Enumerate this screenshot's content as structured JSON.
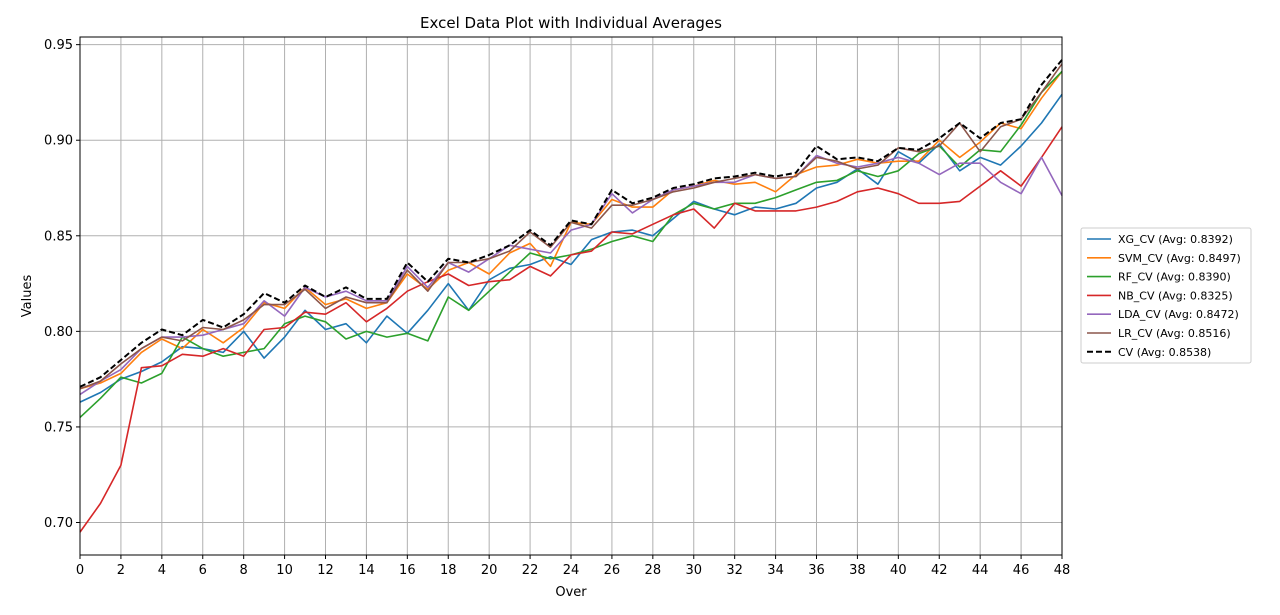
{
  "chart_data": {
    "type": "line",
    "title": "Excel Data Plot with Individual Averages",
    "xlabel": "Over",
    "ylabel": "Values",
    "xlim": [
      0,
      48
    ],
    "ylim": [
      0.683,
      0.954
    ],
    "xticks": [
      0,
      2,
      4,
      6,
      8,
      10,
      12,
      14,
      16,
      18,
      20,
      22,
      24,
      26,
      28,
      30,
      32,
      34,
      36,
      38,
      40,
      42,
      44,
      46,
      48
    ],
    "yticks": [
      0.7,
      0.75,
      0.8,
      0.85,
      0.9,
      0.95
    ],
    "grid": true,
    "legend_position": "center-right",
    "x": [
      0,
      1,
      2,
      3,
      4,
      5,
      6,
      7,
      8,
      9,
      10,
      11,
      12,
      13,
      14,
      15,
      16,
      17,
      18,
      19,
      20,
      21,
      22,
      23,
      24,
      25,
      26,
      27,
      28,
      29,
      30,
      31,
      32,
      33,
      34,
      35,
      36,
      37,
      38,
      39,
      40,
      41,
      42,
      43,
      44,
      45,
      46,
      47,
      48
    ],
    "series": [
      {
        "name": "XG_CV (Avg: 0.8392)",
        "color": "#1f77b4",
        "dashed": false,
        "values": [
          0.763,
          0.768,
          0.775,
          0.779,
          0.784,
          0.792,
          0.791,
          0.789,
          0.8,
          0.786,
          0.797,
          0.811,
          0.801,
          0.804,
          0.794,
          0.808,
          0.799,
          0.811,
          0.825,
          0.811,
          0.827,
          0.833,
          0.835,
          0.839,
          0.835,
          0.848,
          0.852,
          0.853,
          0.85,
          0.859,
          0.868,
          0.864,
          0.861,
          0.865,
          0.864,
          0.867,
          0.875,
          0.878,
          0.885,
          0.877,
          0.894,
          0.888,
          0.898,
          0.884,
          0.891,
          0.887,
          0.897,
          0.909,
          0.924
        ]
      },
      {
        "name": "SVM_CV (Avg: 0.8497)",
        "color": "#ff7f0e",
        "dashed": false,
        "values": [
          0.77,
          0.773,
          0.778,
          0.789,
          0.796,
          0.791,
          0.801,
          0.794,
          0.802,
          0.815,
          0.812,
          0.823,
          0.814,
          0.817,
          0.812,
          0.815,
          0.83,
          0.822,
          0.832,
          0.836,
          0.83,
          0.841,
          0.846,
          0.834,
          0.857,
          0.856,
          0.869,
          0.865,
          0.865,
          0.874,
          0.876,
          0.879,
          0.877,
          0.878,
          0.873,
          0.882,
          0.886,
          0.887,
          0.89,
          0.888,
          0.889,
          0.889,
          0.9,
          0.891,
          0.899,
          0.909,
          0.906,
          0.922,
          0.936
        ]
      },
      {
        "name": "RF_CV (Avg: 0.8390)",
        "color": "#2ca02c",
        "dashed": false,
        "values": [
          0.755,
          0.765,
          0.776,
          0.773,
          0.778,
          0.797,
          0.791,
          0.787,
          0.789,
          0.791,
          0.804,
          0.808,
          0.805,
          0.796,
          0.8,
          0.797,
          0.799,
          0.795,
          0.818,
          0.811,
          0.821,
          0.831,
          0.841,
          0.838,
          0.84,
          0.843,
          0.847,
          0.85,
          0.847,
          0.861,
          0.867,
          0.864,
          0.867,
          0.867,
          0.87,
          0.874,
          0.878,
          0.879,
          0.884,
          0.881,
          0.884,
          0.893,
          0.897,
          0.886,
          0.895,
          0.894,
          0.908,
          0.925,
          0.936
        ]
      },
      {
        "name": "NB_CV (Avg: 0.8325)",
        "color": "#d62728",
        "dashed": false,
        "values": [
          0.695,
          0.71,
          0.73,
          0.781,
          0.782,
          0.788,
          0.787,
          0.791,
          0.787,
          0.801,
          0.802,
          0.81,
          0.809,
          0.815,
          0.805,
          0.812,
          0.821,
          0.826,
          0.83,
          0.824,
          0.826,
          0.827,
          0.834,
          0.829,
          0.84,
          0.842,
          0.852,
          0.851,
          0.856,
          0.861,
          0.864,
          0.854,
          0.867,
          0.863,
          0.863,
          0.863,
          0.865,
          0.868,
          0.873,
          0.875,
          0.872,
          0.867,
          0.867,
          0.868,
          0.876,
          0.884,
          0.876,
          0.891,
          0.907
        ]
      },
      {
        "name": "LDA_CV (Avg: 0.8472)",
        "color": "#9467bd",
        "dashed": false,
        "values": [
          0.767,
          0.774,
          0.78,
          0.791,
          0.797,
          0.797,
          0.798,
          0.801,
          0.804,
          0.816,
          0.808,
          0.823,
          0.818,
          0.821,
          0.816,
          0.816,
          0.834,
          0.823,
          0.836,
          0.831,
          0.838,
          0.845,
          0.843,
          0.841,
          0.853,
          0.856,
          0.872,
          0.862,
          0.869,
          0.874,
          0.876,
          0.878,
          0.878,
          0.882,
          0.88,
          0.881,
          0.892,
          0.888,
          0.886,
          0.888,
          0.891,
          0.888,
          0.882,
          0.888,
          0.888,
          0.878,
          0.872,
          0.891,
          0.871
        ]
      },
      {
        "name": "LR_CV (Avg: 0.8516)",
        "color": "#8c564b",
        "dashed": false,
        "values": [
          0.77,
          0.774,
          0.783,
          0.791,
          0.797,
          0.795,
          0.802,
          0.801,
          0.806,
          0.814,
          0.814,
          0.822,
          0.812,
          0.818,
          0.815,
          0.815,
          0.832,
          0.821,
          0.836,
          0.836,
          0.838,
          0.842,
          0.852,
          0.844,
          0.857,
          0.854,
          0.866,
          0.866,
          0.869,
          0.873,
          0.875,
          0.878,
          0.88,
          0.882,
          0.88,
          0.881,
          0.891,
          0.889,
          0.885,
          0.887,
          0.896,
          0.894,
          0.897,
          0.909,
          0.894,
          0.907,
          0.911,
          0.925,
          0.94
        ]
      },
      {
        "name": "CV (Avg: 0.8538)",
        "color": "#000000",
        "dashed": true,
        "values": [
          0.771,
          0.776,
          0.785,
          0.794,
          0.801,
          0.798,
          0.806,
          0.802,
          0.809,
          0.82,
          0.815,
          0.824,
          0.818,
          0.823,
          0.817,
          0.817,
          0.836,
          0.826,
          0.838,
          0.836,
          0.84,
          0.845,
          0.853,
          0.845,
          0.858,
          0.856,
          0.874,
          0.867,
          0.87,
          0.875,
          0.877,
          0.88,
          0.881,
          0.883,
          0.881,
          0.883,
          0.897,
          0.89,
          0.891,
          0.889,
          0.896,
          0.895,
          0.901,
          0.909,
          0.901,
          0.909,
          0.911,
          0.929,
          0.942
        ]
      }
    ]
  }
}
